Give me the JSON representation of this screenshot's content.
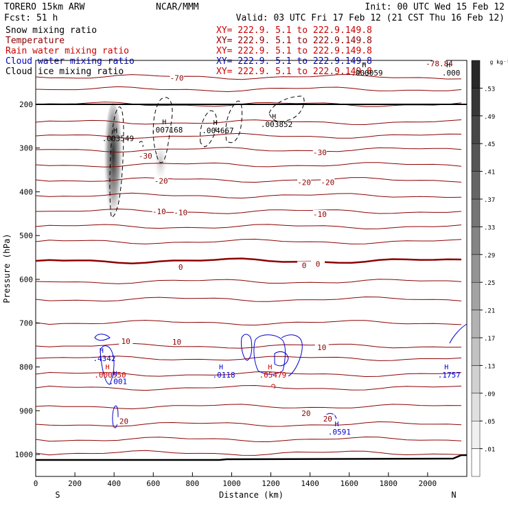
{
  "header": {
    "model": "TORERO  15km ARW",
    "forecast": "Fcst:   51 h",
    "center": "NCAR/MMM",
    "init": "Init: 00 UTC Wed 15 Feb 12",
    "valid": "Valid: 03 UTC Fri 17 Feb 12 (21 CST Thu 16 Feb 12)"
  },
  "fields": [
    {
      "name": "Snow mixing ratio",
      "xy": "XY= 222.9.  5.1 to 222.9.149.8",
      "color": "#000000"
    },
    {
      "name": "Temperature",
      "xy": "XY= 222.9.  5.1 to 222.9.149.8",
      "color": "#8b0000"
    },
    {
      "name": "Rain water mixing ratio",
      "xy": "XY= 222.9.  5.1 to 222.9.149.8",
      "color": "#cc0000"
    },
    {
      "name": "Cloud water mixing ratio",
      "xy": "XY= 222.9.  5.1 to 222.9.149.8",
      "color": "#0000cc"
    },
    {
      "name": "Cloud ice mixing ratio",
      "xy": "XY= 222.9.  5.1 to 222.9.149.8",
      "color": "#000000"
    }
  ],
  "colors": {
    "temperature": "#8b0000",
    "rain": "#cc0000",
    "cloud_water": "#0000cc",
    "cloud_ice": "#000000",
    "snow_shading": "#333333"
  },
  "chart_data": {
    "type": "heatmap",
    "xlabel": "Distance (km)",
    "ylabel": "Pressure (hPa)",
    "xlim": [
      0,
      2200
    ],
    "ylim": [
      1050,
      100
    ],
    "x_ticks": [
      0,
      200,
      400,
      600,
      800,
      1000,
      1200,
      1400,
      1600,
      1800,
      2000
    ],
    "y_ticks": [
      200,
      300,
      400,
      500,
      600,
      700,
      800,
      900,
      1000
    ],
    "x_endpoints": [
      "S",
      "N"
    ],
    "colorbar": {
      "unit": "g kg⁻¹",
      "levels": [
        ".01",
        ".05",
        ".09",
        ".13",
        ".17",
        ".21",
        ".25",
        ".29",
        ".33",
        ".37",
        ".41",
        ".45",
        ".49",
        ".53"
      ]
    },
    "temperature_labels": [
      {
        "text": "-70",
        "x": 720,
        "p": 140
      },
      {
        "text": "-78.84",
        "x": 2060,
        "p": 107
      },
      {
        "text": "-30",
        "x": 560,
        "p": 318
      },
      {
        "text": "-30",
        "x": 1450,
        "p": 310
      },
      {
        "text": "-20",
        "x": 640,
        "p": 375
      },
      {
        "text": "-20",
        "x": 1370,
        "p": 378
      },
      {
        "text": "-20",
        "x": 1490,
        "p": 378
      },
      {
        "text": "-10",
        "x": 630,
        "p": 445
      },
      {
        "text": "-10",
        "x": 740,
        "p": 447
      },
      {
        "text": "-10",
        "x": 1450,
        "p": 451
      },
      {
        "text": "0",
        "x": 740,
        "p": 572
      },
      {
        "text": "0",
        "x": 1370,
        "p": 568
      },
      {
        "text": "0",
        "x": 1440,
        "p": 565
      },
      {
        "text": "10",
        "x": 460,
        "p": 741
      },
      {
        "text": "10",
        "x": 720,
        "p": 743
      },
      {
        "text": "10",
        "x": 1460,
        "p": 755
      },
      {
        "text": "20",
        "x": 450,
        "p": 924
      },
      {
        "text": "20",
        "x": 1380,
        "p": 906
      },
      {
        "text": "20",
        "x": 1490,
        "p": 918
      }
    ],
    "maxima": [
      {
        "value": ".000059",
        "x": 1690,
        "p": 128,
        "color": "#000000"
      },
      {
        "value": ".000",
        "x": 2120,
        "p": 128,
        "color": "#000000"
      },
      {
        "value": ".003549",
        "x": 420,
        "p": 278,
        "color": "#000000"
      },
      {
        "value": ".007168",
        "x": 670,
        "p": 258,
        "color": "#000000"
      },
      {
        "value": ".004667",
        "x": 930,
        "p": 260,
        "color": "#000000"
      },
      {
        "value": ".003852",
        "x": 1230,
        "p": 246,
        "color": "#000000"
      },
      {
        "value": ".4342",
        "x": 350,
        "p": 780,
        "color": "#0000cc"
      },
      {
        "value": ".000550",
        "x": 380,
        "p": 818,
        "color": "#cc0000"
      },
      {
        "value": ".001",
        "x": 420,
        "p": 833,
        "color": "#0000cc"
      },
      {
        "value": ".0118",
        "x": 960,
        "p": 818,
        "color": "#0000cc"
      },
      {
        "value": ".05479",
        "x": 1210,
        "p": 818,
        "color": "#cc0000"
      },
      {
        "value": ".1757",
        "x": 2110,
        "p": 818,
        "color": "#0000cc"
      },
      {
        "value": ".0591",
        "x": 1550,
        "p": 948,
        "color": "#0000cc"
      }
    ]
  }
}
